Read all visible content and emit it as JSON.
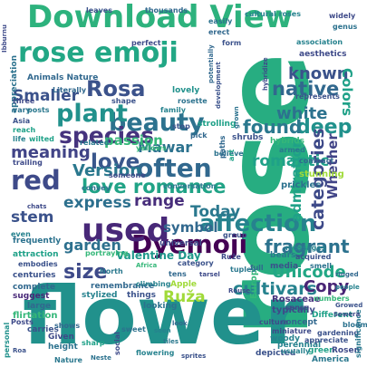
{
  "words": [
    {
      "text": "Download View",
      "color": "#2db27d"
    },
    {
      "text": "rose",
      "color": "#27ad81"
    },
    {
      "text": "flower",
      "color": "#21918c"
    },
    {
      "text": "rose emoji",
      "color": "#22a785"
    },
    {
      "text": "beauty",
      "color": "#2c728e"
    },
    {
      "text": "Rosa",
      "color": "#3b528b"
    },
    {
      "text": "plant",
      "color": "#21918c"
    },
    {
      "text": "species",
      "color": "#46337e"
    },
    {
      "text": "often",
      "color": "#31688e"
    },
    {
      "text": "love",
      "color": "#39568c"
    },
    {
      "text": "Dyemoji",
      "color": "#440154"
    },
    {
      "text": "used",
      "color": "#482878"
    },
    {
      "text": "affection",
      "color": "#26828e"
    },
    {
      "text": "express",
      "color": "#2d708e"
    },
    {
      "text": "love romance",
      "color": "#20a386"
    },
    {
      "text": "red",
      "color": "#3e4a89"
    },
    {
      "text": "Version",
      "color": "#2a788e"
    },
    {
      "text": "meaning",
      "color": "#414487"
    },
    {
      "text": "Smaller",
      "color": "#3b528b"
    },
    {
      "text": "Mawar",
      "color": "#2c728e"
    },
    {
      "text": "passion",
      "color": "#35b779"
    },
    {
      "text": "white",
      "color": "#2c728e"
    },
    {
      "text": "native",
      "color": "#31688e"
    },
    {
      "text": "known",
      "color": "#3b528b"
    },
    {
      "text": "deep",
      "color": "#21918c"
    },
    {
      "text": "found",
      "color": "#2a788e"
    },
    {
      "text": "romantic",
      "color": "#1fa188"
    },
    {
      "text": "categories",
      "color": "#3e4a89"
    },
    {
      "text": "Whether",
      "color": "#414487"
    },
    {
      "text": "admiration",
      "color": "#1fa188"
    },
    {
      "text": "range",
      "color": "#472d7b"
    },
    {
      "text": "Today",
      "color": "#2a788e"
    },
    {
      "text": "symbol",
      "color": "#31688e"
    },
    {
      "text": "stem",
      "color": "#3b528b"
    },
    {
      "text": "garden",
      "color": "#2d708e"
    },
    {
      "text": "Valentine Day",
      "color": "#1f988b"
    },
    {
      "text": "size",
      "color": "#3e4a89"
    },
    {
      "text": "fragrant",
      "color": "#2c728e"
    },
    {
      "text": "cultivars",
      "color": "#26828e"
    },
    {
      "text": "Unicode",
      "color": "#22a785"
    },
    {
      "text": "Copy",
      "color": "#482475"
    },
    {
      "text": "Ruža",
      "color": "#a0da39"
    },
    {
      "text": "Colors",
      "color": "#1fa188"
    },
    {
      "text": "Animals Nature",
      "color": "#31688e"
    },
    {
      "text": "perfect",
      "color": "#3e4a89"
    },
    {
      "text": "form",
      "color": "#3b528b"
    },
    {
      "text": "appreciation",
      "color": "#2c728e"
    },
    {
      "text": "lovely",
      "color": "#21918c"
    },
    {
      "text": "Europe",
      "color": "#35b779"
    },
    {
      "text": "Rosaceae",
      "color": "#46337e"
    },
    {
      "text": "typically",
      "color": "#3e4a89"
    },
    {
      "text": "concept",
      "color": "#31688e"
    },
    {
      "text": "bears",
      "color": "#2a788e"
    },
    {
      "text": "media",
      "color": "#3b528b"
    },
    {
      "text": "woody",
      "color": "#26828e"
    },
    {
      "text": "culture",
      "color": "#3e4a89"
    },
    {
      "text": "frequently",
      "color": "#2c728e"
    },
    {
      "text": "attraction",
      "color": "#1fa188"
    },
    {
      "text": "centuries",
      "color": "#3b528b"
    },
    {
      "text": "complete",
      "color": "#31688e"
    },
    {
      "text": "suggest",
      "color": "#482878"
    },
    {
      "text": "flirtation",
      "color": "#35b779"
    },
    {
      "text": "personal",
      "color": "#21918c"
    },
    {
      "text": "Given",
      "color": "#3e4a89"
    },
    {
      "text": "height",
      "color": "#2c728e"
    },
    {
      "text": "perennial",
      "color": "#26828e"
    },
    {
      "text": "depicted",
      "color": "#3b528b"
    },
    {
      "text": "green",
      "color": "#1fa188"
    },
    {
      "text": "Rosen",
      "color": "#3e4a89"
    },
    {
      "text": "America",
      "color": "#2a788e"
    },
    {
      "text": "thousands",
      "color": "#31688e"
    },
    {
      "text": "leaves",
      "color": "#3b528b"
    },
    {
      "text": "genus",
      "color": "#2c728e"
    },
    {
      "text": "association",
      "color": "#26828e"
    },
    {
      "text": "aesthetics",
      "color": "#3e4a89"
    },
    {
      "text": "hybrids",
      "color": "#35b779"
    },
    {
      "text": "stunning",
      "color": "#a0da39"
    },
    {
      "text": "prickles",
      "color": "#2c728e"
    },
    {
      "text": "shrubs",
      "color": "#3b528b"
    },
    {
      "text": "strolling",
      "color": "#1fa188"
    },
    {
      "text": "conversation",
      "color": "#2a788e"
    },
    {
      "text": "universal",
      "color": "#3e4a89"
    },
    {
      "text": "remembrance",
      "color": "#31688e"
    },
    {
      "text": "stylized",
      "color": "#26828e"
    },
    {
      "text": "things",
      "color": "#3b528b"
    },
    {
      "text": "looking",
      "color": "#2c728e"
    },
    {
      "text": "Apple",
      "color": "#a0da39"
    },
    {
      "text": "Different",
      "color": "#1fa188"
    },
    {
      "text": "miniature",
      "color": "#3e4a89"
    },
    {
      "text": "tens",
      "color": "#31688e"
    },
    {
      "text": "climbing",
      "color": "#26828e"
    },
    {
      "text": "category",
      "color": "#3b528b"
    },
    {
      "text": "North",
      "color": "#2a788e"
    },
    {
      "text": "sense",
      "color": "#3e4a89"
    },
    {
      "text": "numbers",
      "color": "#35b779"
    },
    {
      "text": "carries",
      "color": "#3b528b"
    },
    {
      "text": "shows",
      "color": "#31688e"
    },
    {
      "text": "sweet",
      "color": "#2c728e"
    },
    {
      "text": "sharp",
      "color": "#1fa188"
    },
    {
      "text": "social",
      "color": "#3e4a89"
    },
    {
      "text": "flowering",
      "color": "#26828e"
    },
    {
      "text": "gardening",
      "color": "#3b528b"
    },
    {
      "text": "Nature",
      "color": "#2a788e"
    },
    {
      "text": "Posts",
      "color": "#3e4a89"
    },
    {
      "text": "large",
      "color": "#31688e"
    },
    {
      "text": "vary",
      "color": "#2c728e"
    },
    {
      "text": "Asia",
      "color": "#3b528b"
    },
    {
      "text": "reach",
      "color": "#1fa188"
    },
    {
      "text": "life",
      "color": "#26828e"
    },
    {
      "text": "trailing",
      "color": "#3e4a89"
    },
    {
      "text": "related",
      "color": "#2a788e"
    },
    {
      "text": "pick",
      "color": "#31688e"
    },
    {
      "text": "stop",
      "color": "#3b528b"
    },
    {
      "text": "believe",
      "color": "#2c728e"
    },
    {
      "text": "yellows",
      "color": "#35b779"
    },
    {
      "text": "someone",
      "color": "#3e4a89"
    },
    {
      "text": "family",
      "color": "#26828e"
    },
    {
      "text": "shape",
      "color": "#3b528b"
    },
    {
      "text": "rosette",
      "color": "#2c728e"
    },
    {
      "text": "Literally",
      "color": "#31688e"
    },
    {
      "text": "three",
      "color": "#3e4a89"
    },
    {
      "text": "posts",
      "color": "#2a788e"
    },
    {
      "text": "wilted",
      "color": "#1fa188"
    },
    {
      "text": "development",
      "color": "#3b528b"
    },
    {
      "text": "erect",
      "color": "#31688e"
    },
    {
      "text": "easily",
      "color": "#2c728e"
    },
    {
      "text": "cultural roses",
      "color": "#26828e"
    },
    {
      "text": "widely",
      "color": "#3e4a89"
    },
    {
      "text": "group",
      "color": "#3b528b"
    },
    {
      "text": "armed",
      "color": "#2a788e"
    },
    {
      "text": "compact",
      "color": "#31688e"
    },
    {
      "text": "Ibburnu",
      "color": "#3e4a89"
    },
    {
      "text": "convey",
      "color": "#2c728e"
    },
    {
      "text": "even",
      "color": "#26828e"
    },
    {
      "text": "embodies",
      "color": "#3b528b"
    },
    {
      "text": "portraying",
      "color": "#35b779"
    },
    {
      "text": "Ruže",
      "color": "#3e4a89"
    },
    {
      "text": "full",
      "color": "#31688e"
    },
    {
      "text": "tuples",
      "color": "#2a788e"
    },
    {
      "text": "acquired",
      "color": "#3b528b"
    },
    {
      "text": "messages",
      "color": "#26828e"
    },
    {
      "text": "smell",
      "color": "#2c728e"
    },
    {
      "text": "Rouse",
      "color": "#3e4a89"
    },
    {
      "text": "paths",
      "color": "#31688e"
    },
    {
      "text": "art",
      "color": "#1fa188"
    },
    {
      "text": "represents",
      "color": "#3b528b"
    },
    {
      "text": "hybridize",
      "color": "#3e4a89"
    },
    {
      "text": "grown",
      "color": "#2c728e"
    },
    {
      "text": "usually",
      "color": "#26828e"
    },
    {
      "text": "appreciate",
      "color": "#3b528b"
    },
    {
      "text": "significance",
      "color": "#2a788e"
    },
    {
      "text": "potentially",
      "color": "#31688e"
    },
    {
      "text": "Africa",
      "color": "#35b779"
    },
    {
      "text": "chats",
      "color": "#3e4a89"
    },
    {
      "text": "bloom",
      "color": "#2c728e"
    },
    {
      "text": "Growed",
      "color": "#3b528b"
    },
    {
      "text": "people",
      "color": "#26828e"
    },
    {
      "text": "ringed",
      "color": "#31688e"
    },
    {
      "text": "Sewera",
      "color": "#3e4a89"
    },
    {
      "text": "tiles",
      "color": "#2a788e"
    },
    {
      "text": "sprites",
      "color": "#3b528b"
    },
    {
      "text": "Neste",
      "color": "#2c728e"
    },
    {
      "text": "seen",
      "color": "#26828e"
    },
    {
      "text": "look",
      "color": "#31688e"
    },
    {
      "text": "tarsel",
      "color": "#3e4a89"
    },
    {
      "text": "Roa",
      "color": "#3b528b"
    }
  ]
}
